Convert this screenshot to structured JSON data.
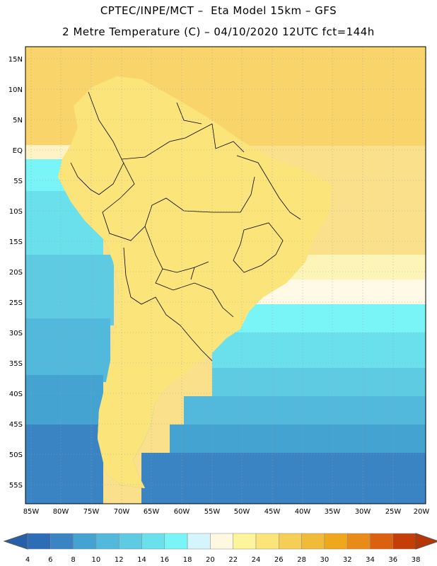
{
  "header": {
    "line1": "CPTEC/INPE/MCT –  Eta Model 15km – GFS",
    "line2": "2 Metre Temperature (C) – 04/10/2020 12UTC fct=144h"
  },
  "axes": {
    "lat_labels": [
      "15N",
      "10N",
      "5N",
      "EQ",
      "5S",
      "10S",
      "15S",
      "20S",
      "25S",
      "30S",
      "35S",
      "40S",
      "45S",
      "50S",
      "55S"
    ],
    "lon_labels": [
      "85W",
      "80W",
      "75W",
      "70W",
      "65W",
      "60W",
      "55W",
      "50W",
      "45W",
      "40W",
      "35W",
      "30W",
      "25W",
      "20W"
    ]
  },
  "colorbar": {
    "labels": [
      "4",
      "6",
      "8",
      "10",
      "12",
      "14",
      "16",
      "18",
      "20",
      "22",
      "24",
      "26",
      "28",
      "30",
      "32",
      "34",
      "36",
      "38"
    ],
    "colors": [
      "#2d6db5",
      "#3a84c3",
      "#44a3d0",
      "#52b9dc",
      "#5ecbe3",
      "#6ae0ec",
      "#7af5f7",
      "#d3f5fb",
      "#fff8e0",
      "#fdf59b",
      "#fbe47a",
      "#f5cf55",
      "#f0bb38",
      "#efa81c",
      "#e88b18",
      "#db6110",
      "#c43e07"
    ],
    "under_color": "#2660a8",
    "over_color": "#b83505"
  }
}
